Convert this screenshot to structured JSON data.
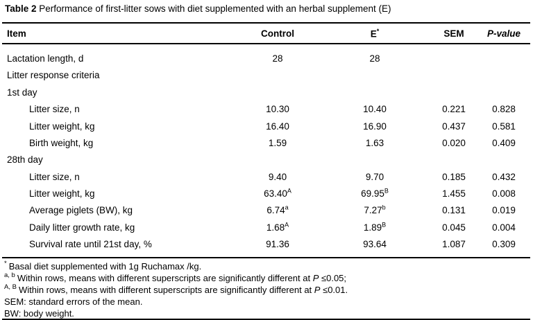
{
  "title": {
    "label": "Table 2",
    "text": " Performance of first-litter sows with diet supplemented with an herbal supplement (E)"
  },
  "table": {
    "columns": {
      "item": "Item",
      "control": "Control",
      "e": "E",
      "e_sup": "*",
      "sem": "SEM",
      "p": "P-value"
    },
    "rows": [
      {
        "label": "Lactation length, d",
        "control": "28",
        "e": "28",
        "sem": "",
        "p": ""
      },
      {
        "label": "Litter response criteria"
      },
      {
        "label": "1st day"
      },
      {
        "label": "Litter size, n",
        "control": "10.30",
        "e": "10.40",
        "sem": "0.221",
        "p": "0.828"
      },
      {
        "label": "Litter weight, kg",
        "control": "16.40",
        "e": "16.90",
        "sem": "0.437",
        "p": "0.581"
      },
      {
        "label": "Birth weight, kg",
        "control": "1.59",
        "e": "1.63",
        "sem": "0.020",
        "p": "0.409"
      },
      {
        "label": "28th day"
      },
      {
        "label": "Litter size, n",
        "control": "9.40",
        "e": "9.70",
        "sem": "0.185",
        "p": "0.432"
      },
      {
        "label": "Litter weight, kg",
        "control": "63.40",
        "control_sup": "A",
        "e": "69.95",
        "e_sup": "B",
        "sem": "1.455",
        "p": "0.008"
      },
      {
        "label": "Average piglets (BW), kg",
        "control": "6.74",
        "control_sup": "a",
        "e": "7.27",
        "e_sup": "b",
        "sem": "0.131",
        "p": "0.019"
      },
      {
        "label": "Daily litter growth rate, kg",
        "control": "1.68",
        "control_sup": "A",
        "e": "1.89",
        "e_sup": "B",
        "sem": "0.045",
        "p": "0.004"
      },
      {
        "label": "Survival rate until 21st day, %",
        "control": "91.36",
        "e": "93.64",
        "sem": "1.087",
        "p": "0.309"
      }
    ]
  },
  "footnotes": [
    {
      "sup": "*",
      "text": "Basal diet supplemented with 1g Ruchamax /kg."
    },
    {
      "sup": "a, b",
      "before": "Within rows, means with different superscripts are significantly different at ",
      "italic": "P",
      "after": " ≤0.05;"
    },
    {
      "sup": "A, B",
      "before": "Within rows, means with different superscripts are significantly different at ",
      "italic": "P",
      "after": " ≤0.01."
    },
    {
      "sup": "",
      "text": "SEM: standard errors of the mean."
    },
    {
      "sup": "",
      "text": "BW: body weight."
    }
  ]
}
